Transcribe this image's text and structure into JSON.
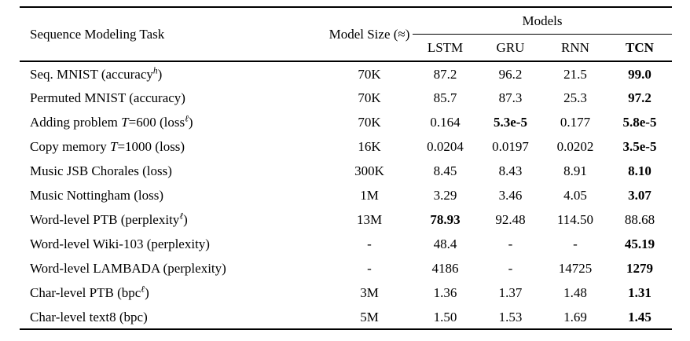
{
  "page": {
    "background": "#ffffff",
    "text_color": "#000000",
    "rule_color": "#000000"
  },
  "table": {
    "col_headers": {
      "task": "Sequence Modeling Task",
      "size": "Model Size (≈)",
      "group": "Models",
      "models": [
        {
          "label": "LSTM",
          "bold": false
        },
        {
          "label": "GRU",
          "bold": false
        },
        {
          "label": "RNN",
          "bold": false
        },
        {
          "label": "TCN",
          "bold": true
        }
      ]
    },
    "rows": [
      {
        "task_parts": [
          {
            "style": "normal",
            "text": "Seq. MNIST (accuracy"
          },
          {
            "style": "sup",
            "text": "h"
          },
          {
            "style": "normal",
            "text": ")"
          }
        ],
        "size": "70K",
        "values": [
          {
            "text": "87.2",
            "bold": false
          },
          {
            "text": "96.2",
            "bold": false
          },
          {
            "text": "21.5",
            "bold": false
          },
          {
            "text": "99.0",
            "bold": true
          }
        ]
      },
      {
        "task_parts": [
          {
            "style": "normal",
            "text": "Permuted MNIST (accuracy)"
          }
        ],
        "size": "70K",
        "values": [
          {
            "text": "85.7",
            "bold": false
          },
          {
            "text": "87.3",
            "bold": false
          },
          {
            "text": "25.3",
            "bold": false
          },
          {
            "text": "97.2",
            "bold": true
          }
        ]
      },
      {
        "task_parts": [
          {
            "style": "normal",
            "text": "Adding problem "
          },
          {
            "style": "italic",
            "text": "T"
          },
          {
            "style": "normal",
            "text": "=600 (loss"
          },
          {
            "style": "sup",
            "text": "ℓ"
          },
          {
            "style": "normal",
            "text": ")"
          }
        ],
        "size": "70K",
        "values": [
          {
            "text": "0.164",
            "bold": false
          },
          {
            "text": "5.3e-5",
            "bold": true
          },
          {
            "text": "0.177",
            "bold": false
          },
          {
            "text": "5.8e-5",
            "bold": true
          }
        ]
      },
      {
        "task_parts": [
          {
            "style": "normal",
            "text": "Copy memory "
          },
          {
            "style": "italic",
            "text": "T"
          },
          {
            "style": "normal",
            "text": "=1000 (loss)"
          }
        ],
        "size": "16K",
        "values": [
          {
            "text": "0.0204",
            "bold": false
          },
          {
            "text": "0.0197",
            "bold": false
          },
          {
            "text": "0.0202",
            "bold": false
          },
          {
            "text": "3.5e-5",
            "bold": true
          }
        ]
      },
      {
        "task_parts": [
          {
            "style": "normal",
            "text": "Music JSB Chorales (loss)"
          }
        ],
        "size": "300K",
        "values": [
          {
            "text": "8.45",
            "bold": false
          },
          {
            "text": "8.43",
            "bold": false
          },
          {
            "text": "8.91",
            "bold": false
          },
          {
            "text": "8.10",
            "bold": true
          }
        ]
      },
      {
        "task_parts": [
          {
            "style": "normal",
            "text": "Music Nottingham (loss)"
          }
        ],
        "size": "1M",
        "values": [
          {
            "text": "3.29",
            "bold": false
          },
          {
            "text": "3.46",
            "bold": false
          },
          {
            "text": "4.05",
            "bold": false
          },
          {
            "text": "3.07",
            "bold": true
          }
        ]
      },
      {
        "task_parts": [
          {
            "style": "normal",
            "text": "Word-level PTB (perplexity"
          },
          {
            "style": "sup",
            "text": "ℓ"
          },
          {
            "style": "normal",
            "text": ")"
          }
        ],
        "size": "13M",
        "values": [
          {
            "text": "78.93",
            "bold": true
          },
          {
            "text": "92.48",
            "bold": false
          },
          {
            "text": "114.50",
            "bold": false
          },
          {
            "text": "88.68",
            "bold": false
          }
        ]
      },
      {
        "task_parts": [
          {
            "style": "normal",
            "text": "Word-level Wiki-103 (perplexity)"
          }
        ],
        "size": "-",
        "values": [
          {
            "text": "48.4",
            "bold": false
          },
          {
            "text": "-",
            "bold": false
          },
          {
            "text": "-",
            "bold": false
          },
          {
            "text": "45.19",
            "bold": true
          }
        ]
      },
      {
        "task_parts": [
          {
            "style": "normal",
            "text": "Word-level LAMBADA (perplexity)"
          }
        ],
        "size": "-",
        "values": [
          {
            "text": "4186",
            "bold": false
          },
          {
            "text": "-",
            "bold": false
          },
          {
            "text": "14725",
            "bold": false
          },
          {
            "text": "1279",
            "bold": true
          }
        ]
      },
      {
        "task_parts": [
          {
            "style": "normal",
            "text": "Char-level PTB (bpc"
          },
          {
            "style": "sup",
            "text": "ℓ"
          },
          {
            "style": "normal",
            "text": ")"
          }
        ],
        "size": "3M",
        "values": [
          {
            "text": "1.36",
            "bold": false
          },
          {
            "text": "1.37",
            "bold": false
          },
          {
            "text": "1.48",
            "bold": false
          },
          {
            "text": "1.31",
            "bold": true
          }
        ]
      },
      {
        "task_parts": [
          {
            "style": "normal",
            "text": "Char-level text8 (bpc)"
          }
        ],
        "size": "5M",
        "values": [
          {
            "text": "1.50",
            "bold": false
          },
          {
            "text": "1.53",
            "bold": false
          },
          {
            "text": "1.69",
            "bold": false
          },
          {
            "text": "1.45",
            "bold": true
          }
        ]
      }
    ]
  }
}
